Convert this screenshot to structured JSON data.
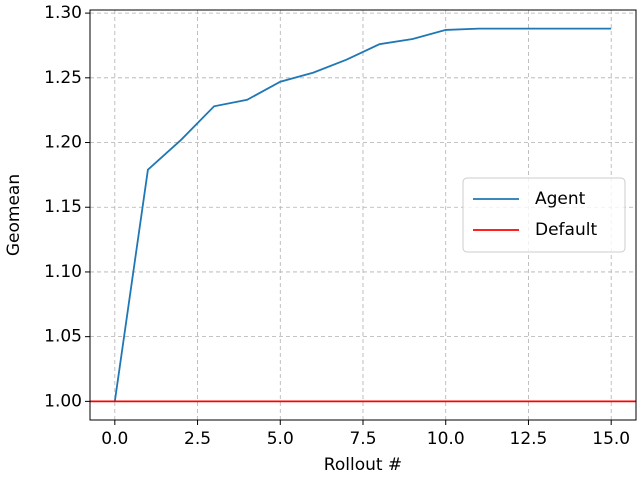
{
  "chart_data": {
    "type": "line",
    "x_label": "Rollout #",
    "y_label": "Geomean",
    "x": [
      0,
      1,
      2,
      3,
      4,
      5,
      6,
      7,
      8,
      9,
      10,
      11,
      12,
      13,
      14,
      15
    ],
    "series": [
      {
        "name": "Agent",
        "color": "#1f77b4",
        "values": [
          1.0,
          1.179,
          1.202,
          1.228,
          1.233,
          1.247,
          1.254,
          1.264,
          1.276,
          1.28,
          1.287,
          1.288,
          1.288,
          1.288,
          1.288,
          1.288
        ]
      }
    ],
    "hlines": [
      {
        "name": "Default",
        "color": "#ff0000",
        "value": 1.0
      }
    ],
    "xlim": [
      -0.75,
      15.75
    ],
    "xticks": [
      {
        "value": 0,
        "label": "0.0"
      },
      2.5,
      {
        "value": 5,
        "label": "5.0"
      },
      7.5,
      {
        "value": 10,
        "label": "10.0"
      },
      12.5,
      {
        "value": 15,
        "label": "15.0"
      }
    ],
    "ylim": [
      0.9856,
      1.3024
    ],
    "yticks": [
      {
        "value": 1,
        "label": "1.00"
      },
      {
        "value": 1.05,
        "label": "1.05"
      },
      {
        "value": 1.1,
        "label": "1.10"
      },
      {
        "value": 1.15,
        "label": "1.15"
      },
      {
        "value": 1.2,
        "label": "1.20"
      },
      {
        "value": 1.25,
        "label": "1.25"
      },
      {
        "value": 1.3,
        "label": "1.30"
      }
    ],
    "grid": true,
    "legend": "center right"
  }
}
